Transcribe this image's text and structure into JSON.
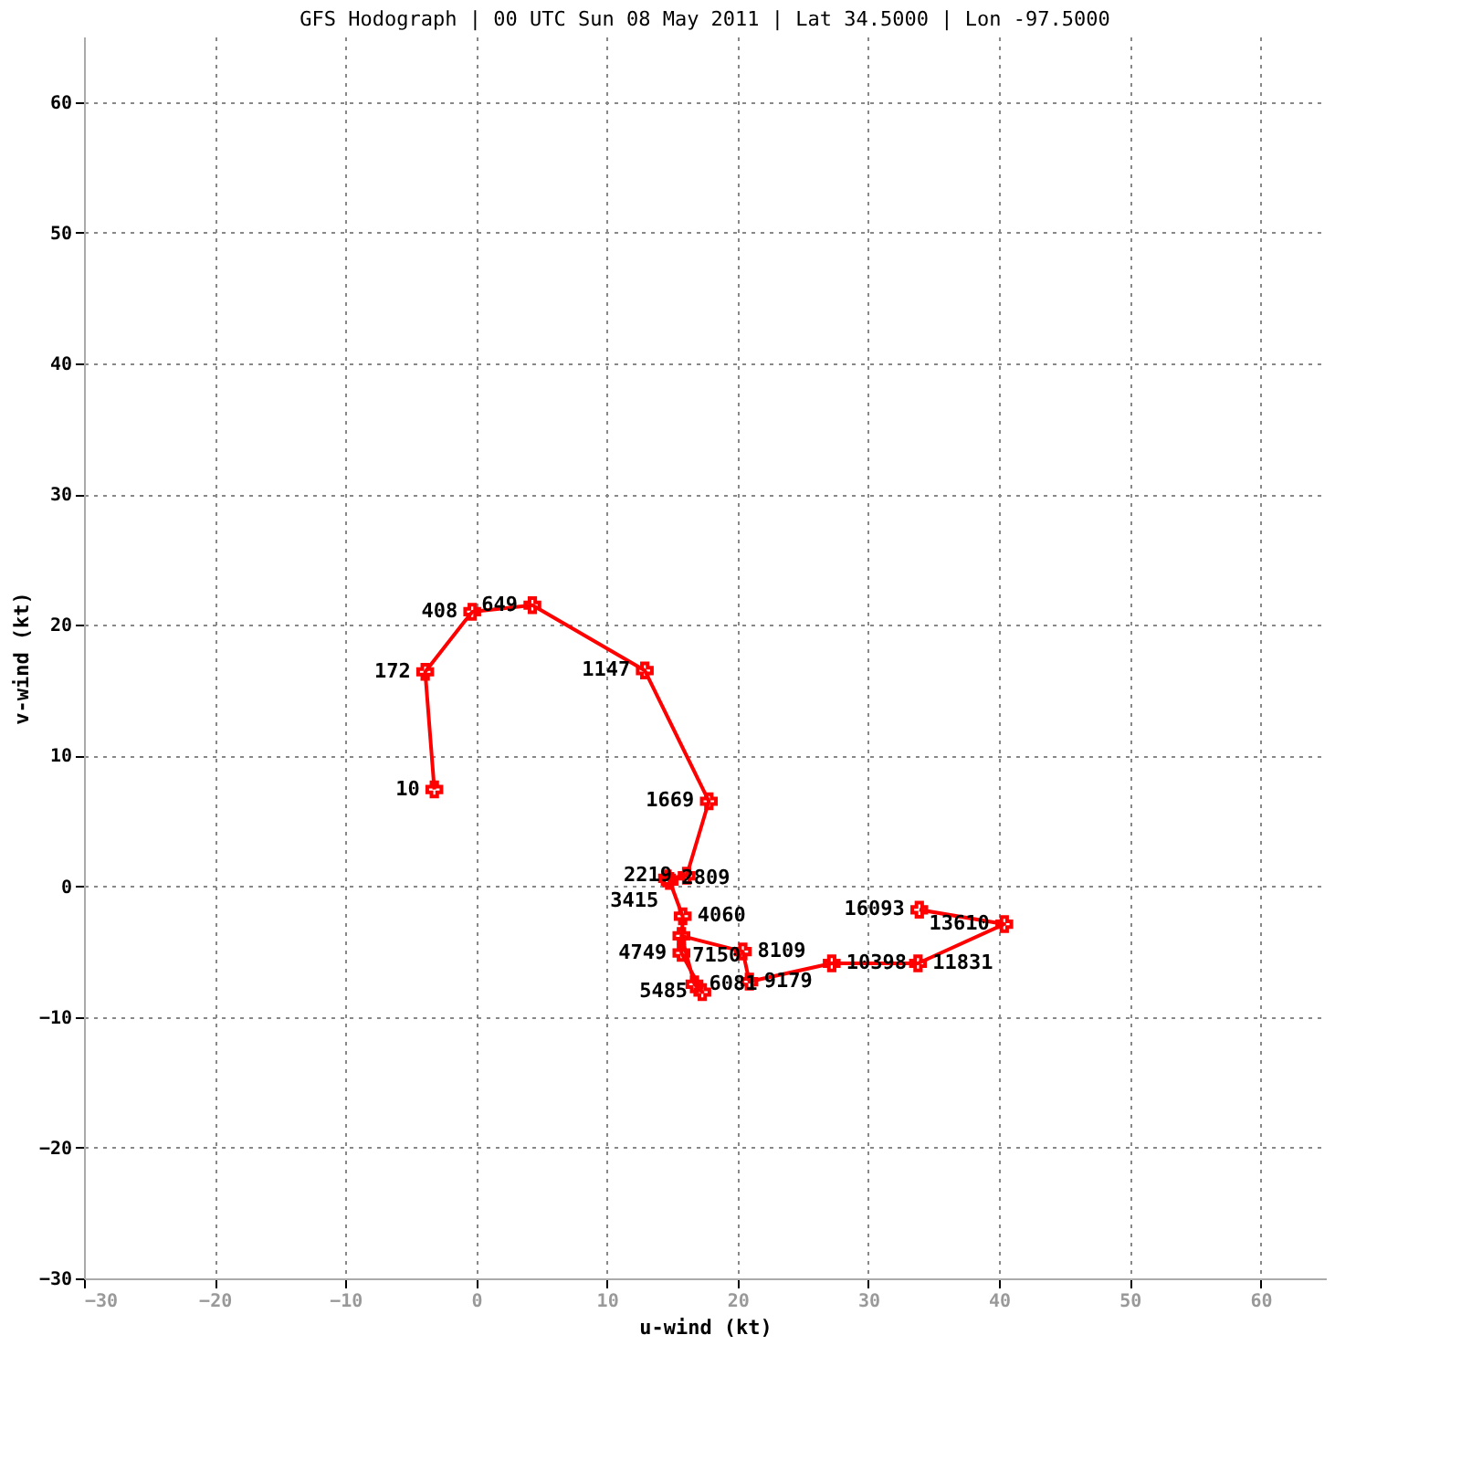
{
  "chart_data": {
    "type": "line",
    "title": "GFS Hodograph | 00 UTC Sun 08 May 2011 | Lat 34.5000 | Lon -97.5000",
    "xlabel": "u-wind (kt)",
    "ylabel": "v-wind (kt)",
    "series": [
      {
        "color": "#ff0000",
        "x": [
          -3.2,
          -3.9,
          -0.3,
          4.3,
          12.9,
          17.8,
          16.1,
          14.6,
          14.8,
          15.8,
          15.7,
          17.3,
          16.7,
          15.7,
          20.4,
          20.9,
          27.2,
          33.8,
          40.4,
          33.9
        ],
        "values": [
          7.4,
          16.4,
          21.0,
          21.5,
          16.5,
          6.5,
          0.8,
          0.6,
          0.4,
          -2.3,
          -5.1,
          -8.1,
          -7.5,
          -3.8,
          -5.0,
          -7.3,
          -5.9,
          -5.9,
          -2.9,
          -1.8
        ]
      }
    ],
    "annotations": [
      {
        "text": "10",
        "x": -3.2,
        "y": 7.4
      },
      {
        "text": "172",
        "x": -3.9,
        "y": 16.4
      },
      {
        "text": "408",
        "x": -0.3,
        "y": 21.0
      },
      {
        "text": "649",
        "x": 4.3,
        "y": 21.5
      },
      {
        "text": "1147",
        "x": 12.9,
        "y": 16.5
      },
      {
        "text": "1669",
        "x": 17.8,
        "y": 6.5
      },
      {
        "text": "2219",
        "x": 16.1,
        "y": 0.8
      },
      {
        "text": "2809",
        "x": 14.6,
        "y": 0.6
      },
      {
        "text": "3415",
        "x": 14.8,
        "y": 0.4
      },
      {
        "text": "4060",
        "x": 15.8,
        "y": -2.3
      },
      {
        "text": "4749",
        "x": 15.7,
        "y": -5.1
      },
      {
        "text": "5485",
        "x": 17.3,
        "y": -8.1
      },
      {
        "text": "6081",
        "x": 16.7,
        "y": -7.5
      },
      {
        "text": "7150",
        "x": 15.7,
        "y": -3.8
      },
      {
        "text": "8109",
        "x": 20.4,
        "y": -5.0
      },
      {
        "text": "9179",
        "x": 20.9,
        "y": -7.3
      },
      {
        "text": "10398",
        "x": 27.2,
        "y": -5.9
      },
      {
        "text": "11831",
        "x": 33.8,
        "y": -5.9
      },
      {
        "text": "13610",
        "x": 40.4,
        "y": -2.9
      },
      {
        "text": "16093",
        "x": 33.9,
        "y": -1.8
      }
    ],
    "xlim": [
      -30,
      65
    ],
    "ylim": [
      -30,
      65
    ],
    "xticks": [
      -30,
      -20,
      -10,
      0,
      10,
      20,
      30,
      40,
      50,
      60
    ],
    "yticks": [
      -30,
      -20,
      -10,
      0,
      10,
      20,
      30,
      40,
      50,
      60
    ],
    "grid": true,
    "marker": "cross",
    "line_style": "solid"
  }
}
